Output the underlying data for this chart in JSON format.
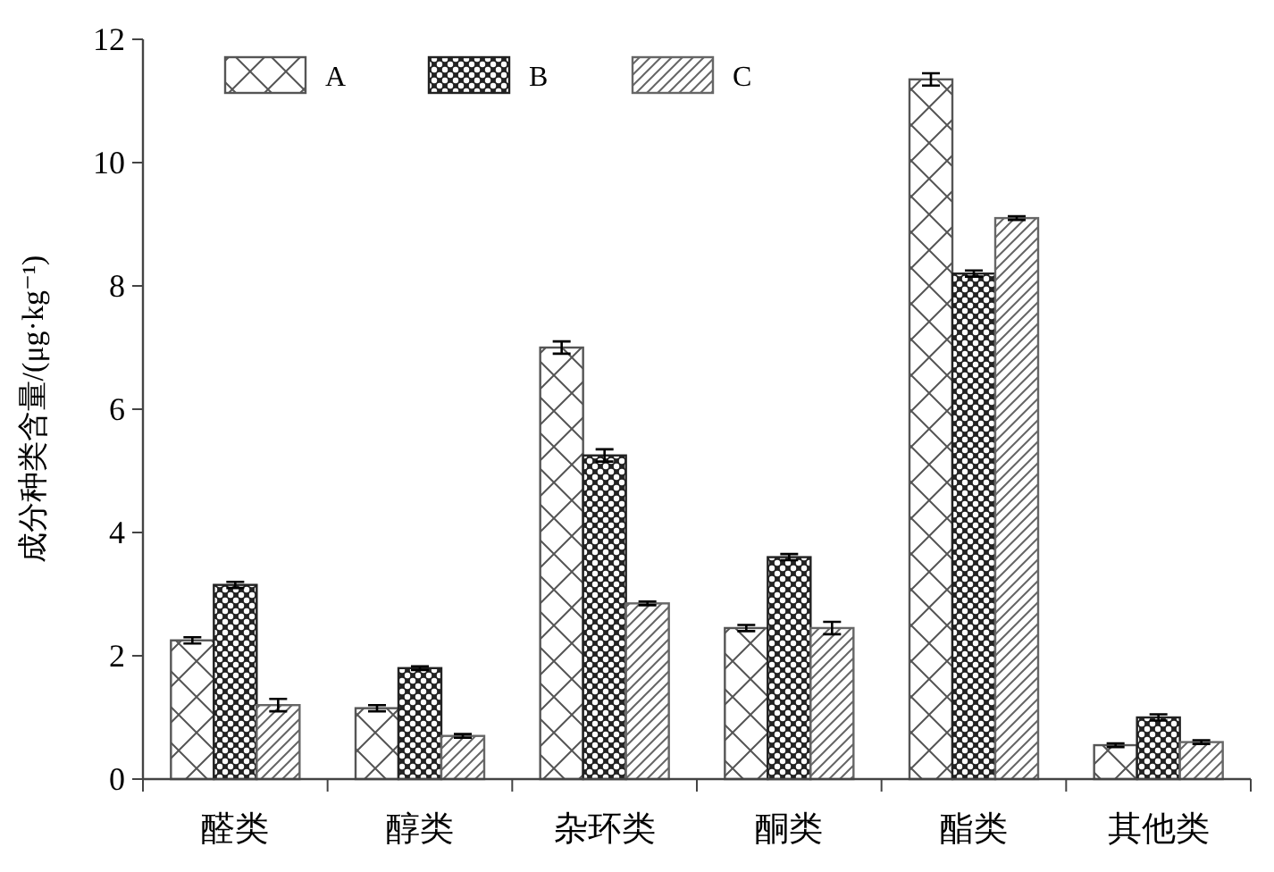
{
  "chart_data": {
    "type": "bar",
    "ylabel": "成分种类含量/(μg·kg⁻¹)",
    "categories": [
      "醛类",
      "醇类",
      "杂环类",
      "酮类",
      "酯类",
      "其他类"
    ],
    "series": [
      {
        "name": "A",
        "color": "#555555",
        "values": [
          2.25,
          1.15,
          7.0,
          2.45,
          11.35,
          0.55
        ],
        "errors": [
          0.05,
          0.05,
          0.1,
          0.05,
          0.1,
          0.03
        ]
      },
      {
        "name": "B",
        "color": "#222222",
        "values": [
          3.15,
          1.8,
          5.25,
          3.6,
          8.2,
          1.0
        ],
        "errors": [
          0.05,
          0.03,
          0.1,
          0.05,
          0.05,
          0.05
        ]
      },
      {
        "name": "C",
        "color": "#666666",
        "values": [
          1.2,
          0.7,
          2.85,
          2.45,
          9.1,
          0.6
        ],
        "errors": [
          0.1,
          0.03,
          0.03,
          0.1,
          0.03,
          0.03
        ]
      }
    ],
    "ylim": [
      0,
      12
    ],
    "yticks": [
      0,
      2,
      4,
      6,
      8,
      10,
      12
    ],
    "grid": false,
    "legend": "top"
  }
}
